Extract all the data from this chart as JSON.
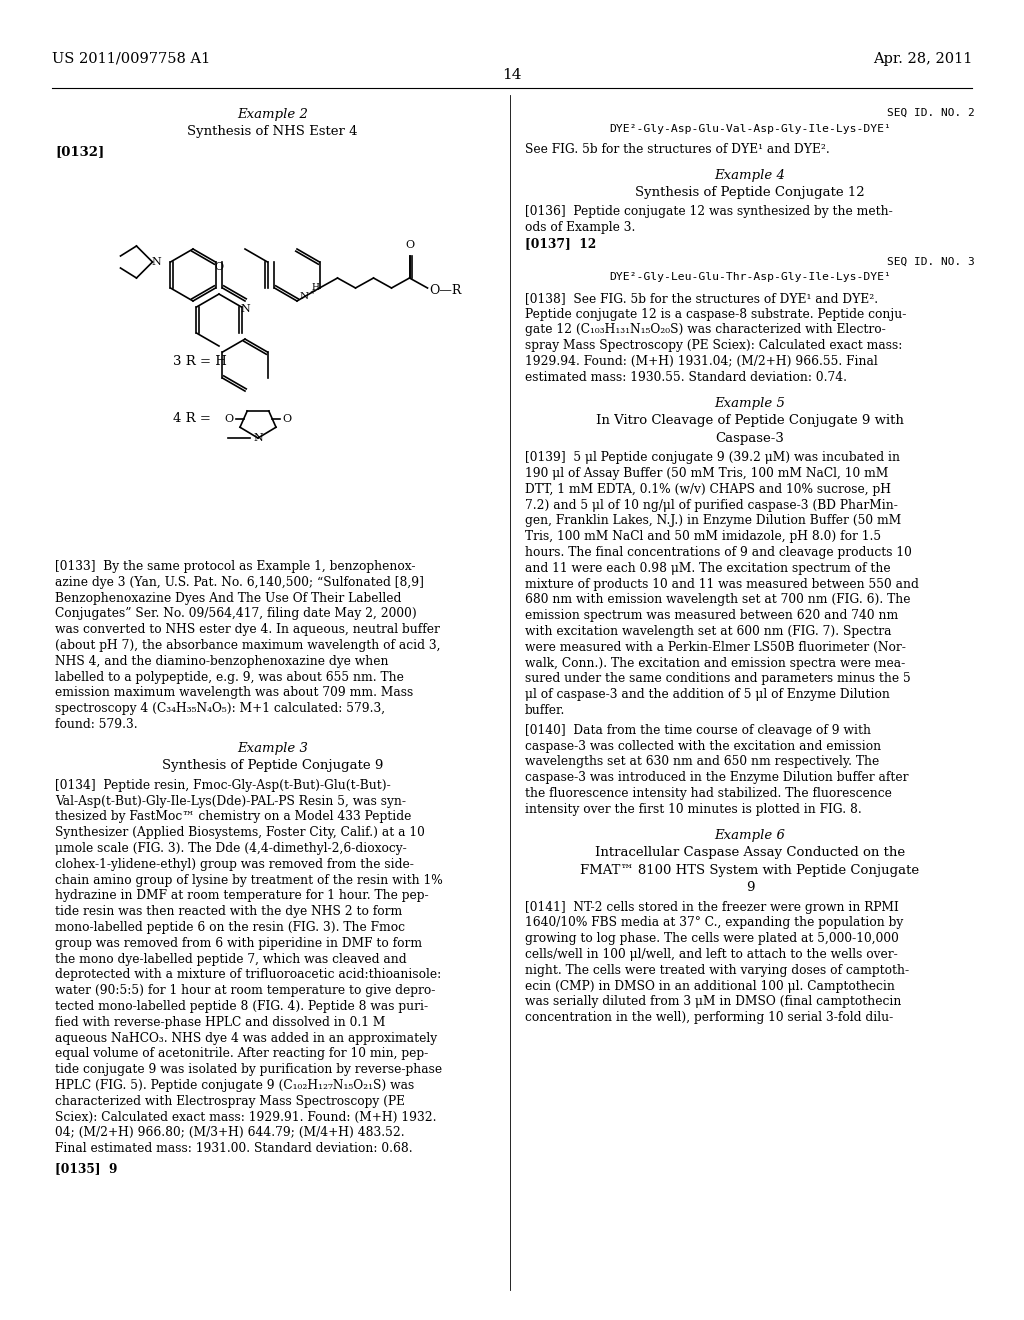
{
  "bg_color": "#ffffff",
  "header_left": "US 2011/0097758 A1",
  "header_right": "Apr. 28, 2011",
  "page_number": "14"
}
